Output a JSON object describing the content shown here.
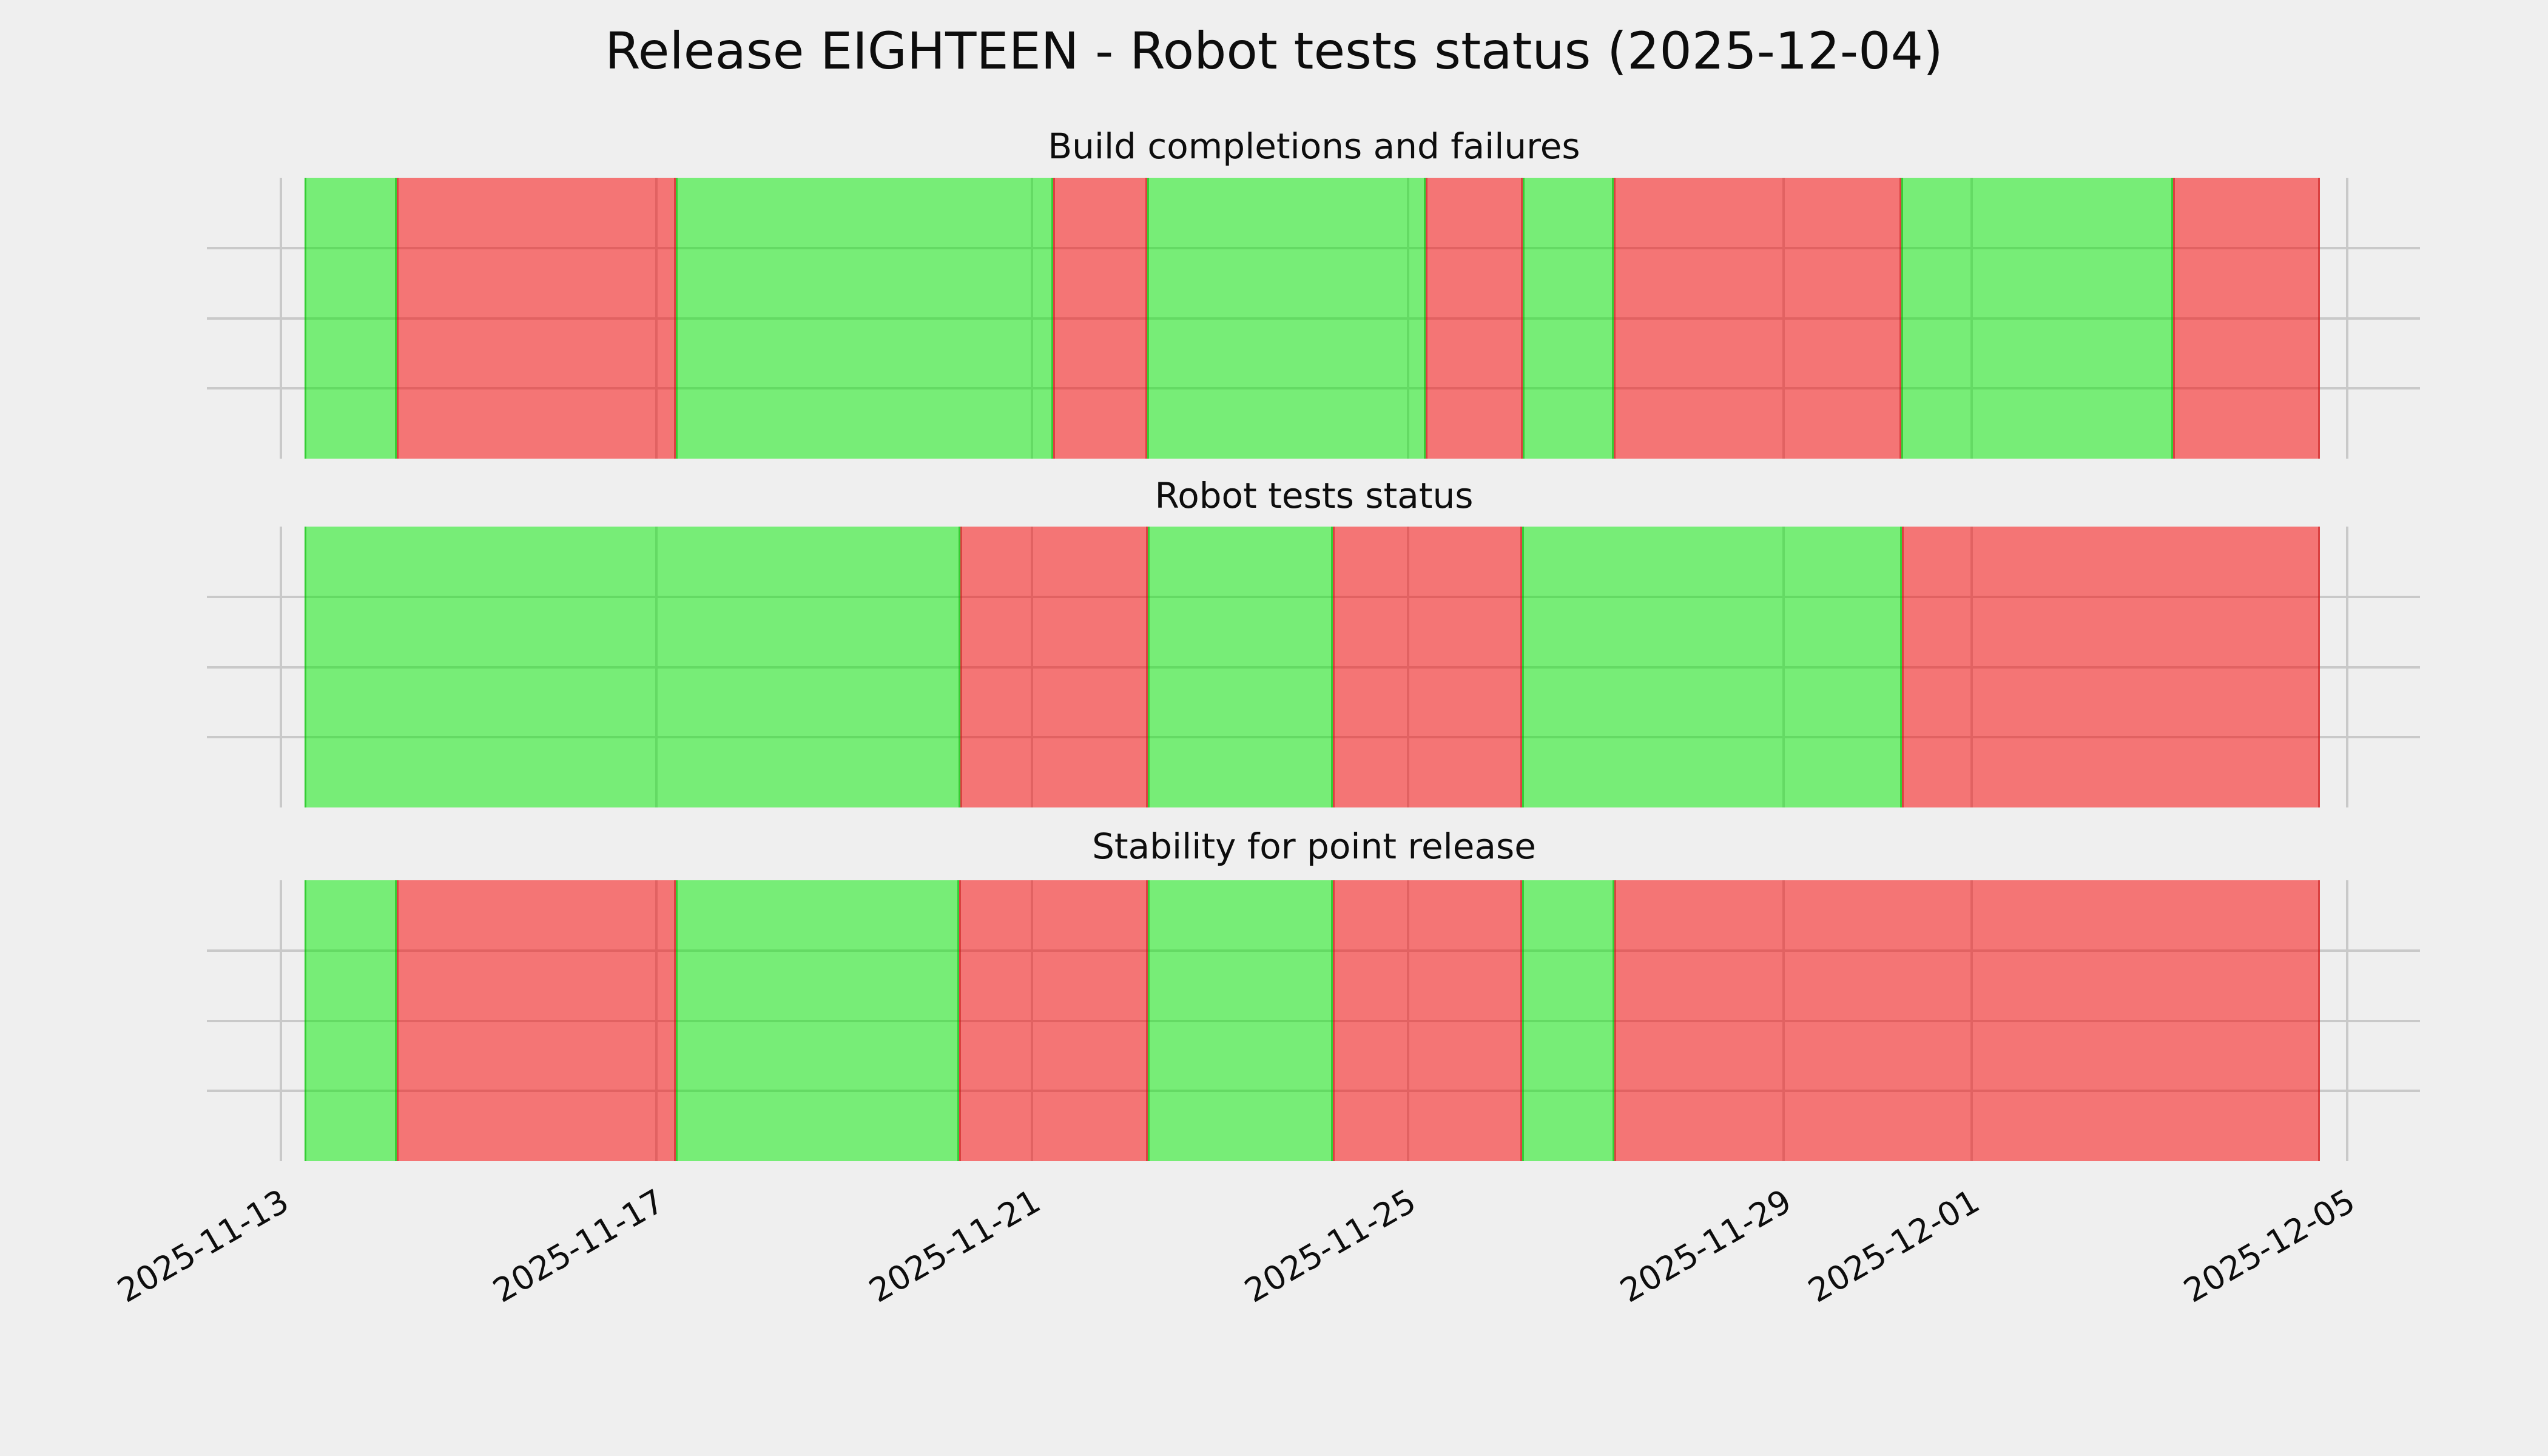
{
  "figure": {
    "background": "#efefef"
  },
  "colors": {
    "background": "#efefef",
    "grid": "#c9c9c9",
    "text": "#0d0d0d",
    "success_fill": "rgba(0,235,0,0.5)",
    "failure_fill": "rgba(250,0,0,0.51)",
    "success_edge": "rgba(0,180,0,0.55)",
    "failure_edge": "rgba(200,30,30,0.6)"
  },
  "chart_data": {
    "type": "bar",
    "subtype": "status-timeline",
    "title": "Release EIGHTEEN - Robot tests status (2025-12-04)",
    "grid": {
      "enabled": true,
      "y_gridline_pcts": [
        25,
        50,
        75
      ]
    },
    "legend": "none",
    "status_colors": {
      "success": "#78ee78",
      "failure": "#f57878"
    },
    "x_axis": {
      "range_start": "2025-11-13",
      "range_end": "2025-12-05",
      "ticks": [
        {
          "label": "2025-11-13",
          "pct": 0
        },
        {
          "label": "2025-11-17",
          "pct": 18.18
        },
        {
          "label": "2025-11-21",
          "pct": 36.36
        },
        {
          "label": "2025-11-25",
          "pct": 54.55
        },
        {
          "label": "2025-11-29",
          "pct": 72.73
        },
        {
          "label": "2025-12-01",
          "pct": 81.82
        },
        {
          "label": "2025-12-05",
          "pct": 100
        }
      ]
    },
    "panels": [
      {
        "title": "Build completions and failures",
        "segments": [
          {
            "status": "success",
            "start": "2025-11-13 06:05",
            "end": "2025-11-14 05:35",
            "start_pct": 1.15,
            "end_pct": 5.61
          },
          {
            "status": "failure",
            "start": "2025-11-14 05:35",
            "end": "2025-11-17 04:55",
            "start_pct": 5.61,
            "end_pct": 19.11
          },
          {
            "status": "success",
            "start": "2025-11-17 04:55",
            "end": "2025-11-21 05:20",
            "start_pct": 19.11,
            "end_pct": 37.38
          },
          {
            "status": "failure",
            "start": "2025-11-21 05:20",
            "end": "2025-11-22 05:25",
            "start_pct": 37.38,
            "end_pct": 41.93
          },
          {
            "status": "success",
            "start": "2025-11-22 05:25",
            "end": "2025-11-25 04:30",
            "start_pct": 41.93,
            "end_pct": 55.4
          },
          {
            "status": "failure",
            "start": "2025-11-25 04:30",
            "end": "2025-11-26 05:20",
            "start_pct": 55.4,
            "end_pct": 60.1
          },
          {
            "status": "success",
            "start": "2025-11-26 05:20",
            "end": "2025-11-27 04:35",
            "start_pct": 60.1,
            "end_pct": 64.5
          },
          {
            "status": "failure",
            "start": "2025-11-27 04:35",
            "end": "2025-11-30 06:05",
            "start_pct": 64.5,
            "end_pct": 78.42
          },
          {
            "status": "success",
            "start": "2025-11-30 06:05",
            "end": "2025-12-03 03:30",
            "start_pct": 78.42,
            "end_pct": 91.57
          },
          {
            "status": "failure",
            "start": "2025-12-03 03:30",
            "end": "2025-12-04 17:00",
            "start_pct": 91.57,
            "end_pct": 98.68
          }
        ]
      },
      {
        "title": "Robot tests status",
        "segments": [
          {
            "status": "success",
            "start": "2025-11-13 06:05",
            "end": "2025-11-20 05:35",
            "start_pct": 1.15,
            "end_pct": 32.88
          },
          {
            "status": "failure",
            "start": "2025-11-20 05:35",
            "end": "2025-11-22 05:35",
            "start_pct": 32.88,
            "end_pct": 41.96
          },
          {
            "status": "success",
            "start": "2025-11-22 05:35",
            "end": "2025-11-24 04:50",
            "start_pct": 41.96,
            "end_pct": 50.91
          },
          {
            "status": "failure",
            "start": "2025-11-24 04:50",
            "end": "2025-11-26 05:10",
            "start_pct": 50.91,
            "end_pct": 60.07
          },
          {
            "status": "success",
            "start": "2025-11-26 05:10",
            "end": "2025-11-30 06:15",
            "start_pct": 60.07,
            "end_pct": 78.45
          },
          {
            "status": "failure",
            "start": "2025-11-30 06:15",
            "end": "2025-12-04 17:00",
            "start_pct": 78.45,
            "end_pct": 98.68
          }
        ]
      },
      {
        "title": "Stability for point release",
        "segments": [
          {
            "status": "success",
            "start": "2025-11-13 06:05",
            "end": "2025-11-14 05:35",
            "start_pct": 1.15,
            "end_pct": 5.61
          },
          {
            "status": "failure",
            "start": "2025-11-14 05:35",
            "end": "2025-11-17 04:55",
            "start_pct": 5.61,
            "end_pct": 19.11
          },
          {
            "status": "success",
            "start": "2025-11-17 04:55",
            "end": "2025-11-20 05:15",
            "start_pct": 19.11,
            "end_pct": 32.82
          },
          {
            "status": "failure",
            "start": "2025-11-20 05:15",
            "end": "2025-11-22 05:35",
            "start_pct": 32.82,
            "end_pct": 41.96
          },
          {
            "status": "success",
            "start": "2025-11-22 05:35",
            "end": "2025-11-24 04:50",
            "start_pct": 41.96,
            "end_pct": 50.91
          },
          {
            "status": "failure",
            "start": "2025-11-24 04:50",
            "end": "2025-11-26 05:10",
            "start_pct": 50.91,
            "end_pct": 60.07
          },
          {
            "status": "success",
            "start": "2025-11-26 05:10",
            "end": "2025-11-27 04:45",
            "start_pct": 60.07,
            "end_pct": 64.53
          },
          {
            "status": "failure",
            "start": "2025-11-27 04:45",
            "end": "2025-12-04 17:00",
            "start_pct": 64.53,
            "end_pct": 98.68
          }
        ]
      }
    ]
  }
}
